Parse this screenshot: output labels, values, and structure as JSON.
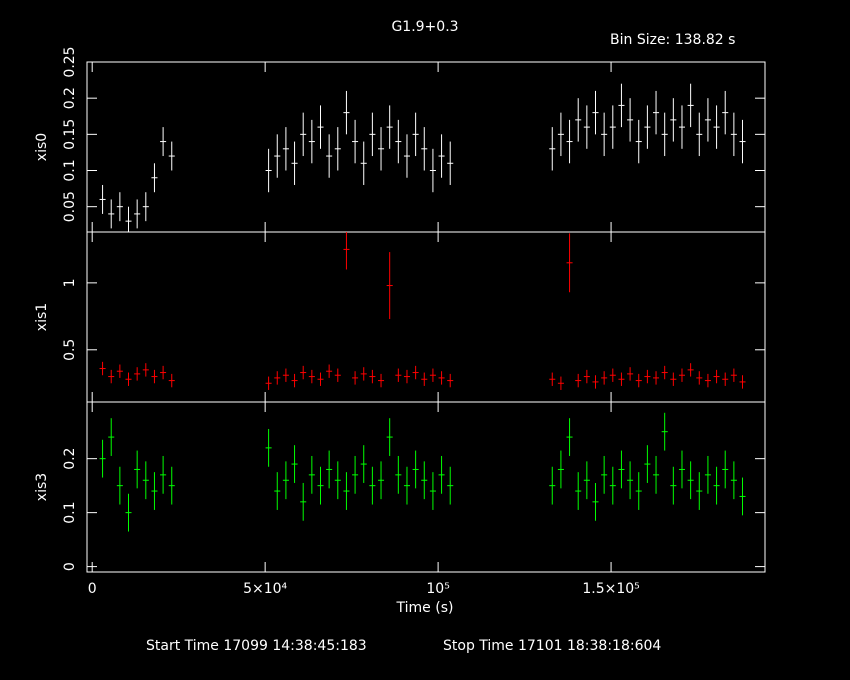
{
  "header": {
    "title": "G1.9+0.3",
    "bin_size": "Bin Size: 138.82 s"
  },
  "footer": {
    "start": "Start Time 17099 14:38:45:183",
    "stop": "Stop Time 17101 18:38:18:604"
  },
  "chart_data": [
    {
      "type": "errorbar",
      "ylabel": "xis0",
      "color": "#ffffff",
      "x": [
        3000,
        5500,
        8000,
        10500,
        13000,
        15500,
        18000,
        20500,
        23000,
        51000,
        53500,
        56000,
        58500,
        61000,
        63500,
        66000,
        68500,
        71000,
        73500,
        76000,
        78500,
        81000,
        83500,
        86000,
        88500,
        91000,
        93500,
        96000,
        98500,
        101000,
        103500,
        133000,
        135500,
        138000,
        140500,
        143000,
        145500,
        148000,
        150500,
        153000,
        155500,
        158000,
        160500,
        163000,
        165500,
        168000,
        170500,
        173000,
        175500,
        178000,
        180500,
        183000,
        185500,
        188000
      ],
      "values": [
        0.06,
        0.04,
        0.05,
        0.03,
        0.04,
        0.05,
        0.09,
        0.14,
        0.12,
        0.1,
        0.12,
        0.13,
        0.11,
        0.15,
        0.14,
        0.16,
        0.12,
        0.13,
        0.18,
        0.14,
        0.11,
        0.15,
        0.13,
        0.16,
        0.14,
        0.12,
        0.15,
        0.13,
        0.1,
        0.12,
        0.11,
        0.13,
        0.15,
        0.14,
        0.17,
        0.16,
        0.18,
        0.15,
        0.16,
        0.19,
        0.17,
        0.14,
        0.16,
        0.18,
        0.15,
        0.17,
        0.16,
        0.19,
        0.15,
        0.17,
        0.16,
        0.18,
        0.15,
        0.14
      ],
      "errors": [
        0.02,
        0.02,
        0.02,
        0.02,
        0.02,
        0.02,
        0.02,
        0.02,
        0.02,
        0.03,
        0.03,
        0.03,
        0.03,
        0.03,
        0.03,
        0.03,
        0.03,
        0.03,
        0.03,
        0.03,
        0.03,
        0.03,
        0.03,
        0.03,
        0.03,
        0.03,
        0.03,
        0.03,
        0.03,
        0.03,
        0.03,
        0.03,
        0.03,
        0.03,
        0.03,
        0.03,
        0.03,
        0.03,
        0.03,
        0.03,
        0.03,
        0.03,
        0.03,
        0.03,
        0.03,
        0.03,
        0.03,
        0.03,
        0.03,
        0.03,
        0.03,
        0.03,
        0.03,
        0.03
      ],
      "xlim": [
        -1500,
        194500
      ],
      "xticks": [
        0,
        50000,
        100000,
        150000
      ],
      "ylim": [
        0.015,
        0.25
      ],
      "yticks": [
        0.05,
        0.1,
        0.15,
        0.2,
        0.25
      ]
    },
    {
      "type": "errorbar",
      "ylabel": "xis1",
      "color": "#ff0000",
      "x": [
        3000,
        5500,
        8000,
        10500,
        13000,
        15500,
        18000,
        20500,
        23000,
        51000,
        53500,
        56000,
        58500,
        61000,
        63500,
        66000,
        68500,
        71000,
        73500,
        76000,
        78500,
        81000,
        83500,
        86000,
        88500,
        91000,
        93500,
        96000,
        98500,
        101000,
        103500,
        133000,
        135500,
        138000,
        140500,
        143000,
        145500,
        148000,
        150500,
        153000,
        155500,
        158000,
        160500,
        163000,
        165500,
        168000,
        170500,
        173000,
        175500,
        178000,
        180500,
        183000,
        185500,
        188000
      ],
      "values": [
        0.36,
        0.3,
        0.34,
        0.28,
        0.32,
        0.35,
        0.3,
        0.33,
        0.27,
        0.25,
        0.29,
        0.31,
        0.27,
        0.33,
        0.3,
        0.28,
        0.34,
        0.31,
        1.25,
        0.29,
        0.32,
        0.3,
        0.27,
        0.98,
        0.31,
        0.3,
        0.33,
        0.28,
        0.31,
        0.29,
        0.27,
        0.28,
        0.25,
        1.15,
        0.27,
        0.3,
        0.26,
        0.29,
        0.31,
        0.28,
        0.32,
        0.27,
        0.3,
        0.29,
        0.33,
        0.28,
        0.31,
        0.35,
        0.29,
        0.27,
        0.3,
        0.28,
        0.31,
        0.26
      ],
      "errors": [
        0.05,
        0.05,
        0.05,
        0.05,
        0.05,
        0.05,
        0.05,
        0.05,
        0.05,
        0.05,
        0.05,
        0.05,
        0.05,
        0.05,
        0.05,
        0.05,
        0.05,
        0.05,
        0.15,
        0.05,
        0.05,
        0.05,
        0.05,
        0.25,
        0.05,
        0.05,
        0.05,
        0.05,
        0.05,
        0.05,
        0.05,
        0.05,
        0.05,
        0.22,
        0.05,
        0.05,
        0.05,
        0.05,
        0.05,
        0.05,
        0.05,
        0.05,
        0.05,
        0.05,
        0.05,
        0.05,
        0.05,
        0.05,
        0.05,
        0.05,
        0.05,
        0.05,
        0.05,
        0.05
      ],
      "xlim": [
        -1500,
        194500
      ],
      "xticks": [
        0,
        50000,
        100000,
        150000
      ],
      "ylim": [
        0.11,
        1.38
      ],
      "yticks": [
        0.5,
        1
      ]
    },
    {
      "type": "errorbar",
      "ylabel": "xis3",
      "color": "#00ff00",
      "xlabel": "Time (s)",
      "x": [
        3000,
        5500,
        8000,
        10500,
        13000,
        15500,
        18000,
        20500,
        23000,
        51000,
        53500,
        56000,
        58500,
        61000,
        63500,
        66000,
        68500,
        71000,
        73500,
        76000,
        78500,
        81000,
        83500,
        86000,
        88500,
        91000,
        93500,
        96000,
        98500,
        101000,
        103500,
        133000,
        135500,
        138000,
        140500,
        143000,
        145500,
        148000,
        150500,
        153000,
        155500,
        158000,
        160500,
        163000,
        165500,
        168000,
        170500,
        173000,
        175500,
        178000,
        180500,
        183000,
        185500,
        188000
      ],
      "values": [
        0.2,
        0.24,
        0.15,
        0.1,
        0.18,
        0.16,
        0.14,
        0.17,
        0.15,
        0.22,
        0.14,
        0.16,
        0.19,
        0.12,
        0.17,
        0.15,
        0.18,
        0.16,
        0.14,
        0.17,
        0.19,
        0.15,
        0.16,
        0.24,
        0.17,
        0.15,
        0.18,
        0.16,
        0.14,
        0.17,
        0.15,
        0.15,
        0.18,
        0.24,
        0.14,
        0.16,
        0.12,
        0.17,
        0.15,
        0.18,
        0.16,
        0.14,
        0.19,
        0.17,
        0.25,
        0.15,
        0.18,
        0.16,
        0.14,
        0.17,
        0.15,
        0.18,
        0.16,
        0.13
      ],
      "errors": [
        0.035,
        0.035,
        0.035,
        0.035,
        0.035,
        0.035,
        0.035,
        0.035,
        0.035,
        0.035,
        0.035,
        0.035,
        0.035,
        0.035,
        0.035,
        0.035,
        0.035,
        0.035,
        0.035,
        0.035,
        0.035,
        0.035,
        0.035,
        0.035,
        0.035,
        0.035,
        0.035,
        0.035,
        0.035,
        0.035,
        0.035,
        0.035,
        0.035,
        0.035,
        0.035,
        0.035,
        0.035,
        0.035,
        0.035,
        0.035,
        0.035,
        0.035,
        0.035,
        0.035,
        0.035,
        0.035,
        0.035,
        0.035,
        0.035,
        0.035,
        0.035,
        0.035,
        0.035,
        0.035
      ],
      "xlim": [
        -1500,
        194500
      ],
      "xticks": [
        0,
        {
          "value": 50000,
          "label": "5×10⁴"
        },
        {
          "value": 100000,
          "label": "10⁵"
        },
        {
          "value": 150000,
          "label": "1.5×10⁵"
        }
      ],
      "ylim": [
        -0.01,
        0.305
      ],
      "yticks": [
        0,
        0.1,
        0.2
      ]
    }
  ]
}
